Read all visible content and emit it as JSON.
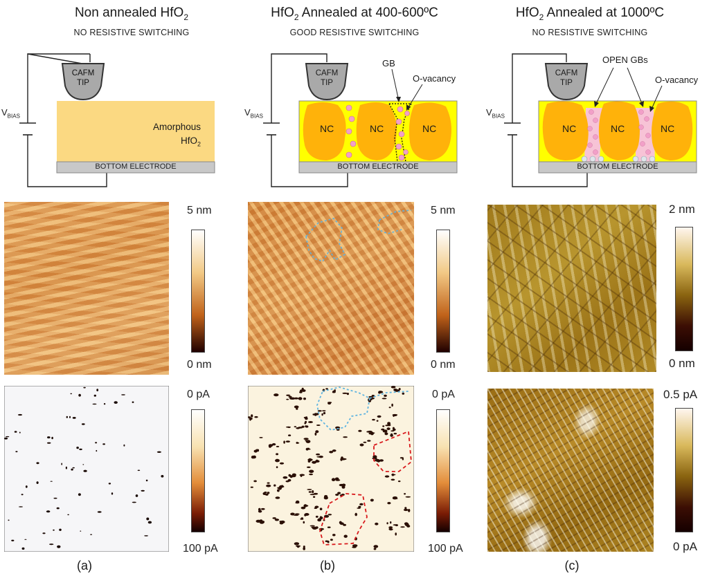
{
  "columns": [
    {
      "title_pre": "Non annealed HfO",
      "title_sub": "2",
      "title_post": "",
      "subtitle": "NO RESISTIVE SWITCHING",
      "panel_label": "(a)",
      "schematic": {
        "tip_line1": "CAFM",
        "tip_line2": "TIP",
        "bias_main": "V",
        "bias_sub": "BIAS",
        "film_line1": "Amorphous",
        "film_line2_pre": "HfO",
        "film_line2_sub": "2",
        "electrode": "BOTTOM ELECTRODE"
      },
      "topo_scale": {
        "top": "5 nm",
        "bottom": "0 nm"
      },
      "current_scale": {
        "top": "0 pA",
        "bottom": "100 pA"
      }
    },
    {
      "title_pre": "HfO",
      "title_sub": "2",
      "title_post": " Annealed at 400-600ºC",
      "subtitle": "GOOD RESISTIVE SWITCHING",
      "panel_label": "(b)",
      "schematic": {
        "tip_line1": "CAFM",
        "tip_line2": "TIP",
        "bias_main": "V",
        "bias_sub": "BIAS",
        "gb": "GB",
        "vacancy": "O-vacancy",
        "nc": "NC",
        "electrode": "BOTTOM ELECTRODE"
      },
      "topo_scale": {
        "top": "5 nm",
        "bottom": "0 nm"
      },
      "current_scale": {
        "top": "0 pA",
        "bottom": "100 pA"
      }
    },
    {
      "title_pre": "HfO",
      "title_sub": "2",
      "title_post": " Annealed at 1000ºC",
      "subtitle": "NO RESISTIVE SWITCHING",
      "panel_label": "(c)",
      "schematic": {
        "tip_line1": "CAFM",
        "tip_line2": "TIP",
        "bias_main": "V",
        "bias_sub": "BIAS",
        "open_gbs": "OPEN GBs",
        "vacancy": "O-vacancy",
        "nc": "NC",
        "electrode": "BOTTOM ELECTRODE"
      },
      "topo_scale": {
        "top": "2 nm",
        "bottom": "0 nm"
      },
      "current_scale": {
        "top": "0.5 pA",
        "bottom": "0 pA"
      }
    }
  ],
  "colors": {
    "film_amorphous": "#fbd982",
    "film_yellow": "#ffff00",
    "nc_orange": "#ffb20a",
    "electrode_gray": "#c8c8c8",
    "tip_gray": "#a9a9a9",
    "vacancy_pink": "#f2a0c8"
  }
}
